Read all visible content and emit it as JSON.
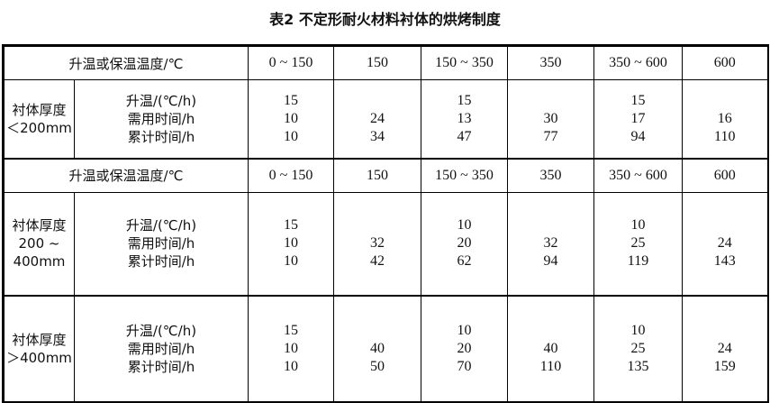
{
  "caption": "表2  不定形耐火材料衬体的烘烤制度",
  "header_label": "升温或保温温度/℃",
  "temps": [
    "0 ~ 150",
    "150",
    "150 ~ 350",
    "350",
    "350 ~ 600",
    "600"
  ],
  "row_labels": [
    "升温/(℃/h)",
    "需用时间/h",
    "累计时间/h"
  ],
  "groups": [
    {
      "thickness": [
        "衬体厚度",
        "＜200mm"
      ],
      "rows": [
        [
          "15",
          "",
          "15",
          "",
          "15",
          ""
        ],
        [
          "10",
          "24",
          "13",
          "30",
          "17",
          "16"
        ],
        [
          "10",
          "34",
          "47",
          "77",
          "94",
          "110"
        ]
      ]
    },
    {
      "thickness": [
        "衬体厚度",
        "200 ~",
        "400mm"
      ],
      "rows": [
        [
          "15",
          "",
          "10",
          "",
          "10",
          ""
        ],
        [
          "10",
          "32",
          "20",
          "32",
          "25",
          "24"
        ],
        [
          "10",
          "42",
          "62",
          "94",
          "119",
          "143"
        ]
      ]
    },
    {
      "thickness": [
        "衬体厚度",
        "＞400mm"
      ],
      "rows": [
        [
          "15",
          "",
          "10",
          "",
          "10",
          ""
        ],
        [
          "10",
          "40",
          "20",
          "40",
          "25",
          "24"
        ],
        [
          "10",
          "50",
          "70",
          "110",
          "135",
          "159"
        ]
      ]
    }
  ]
}
